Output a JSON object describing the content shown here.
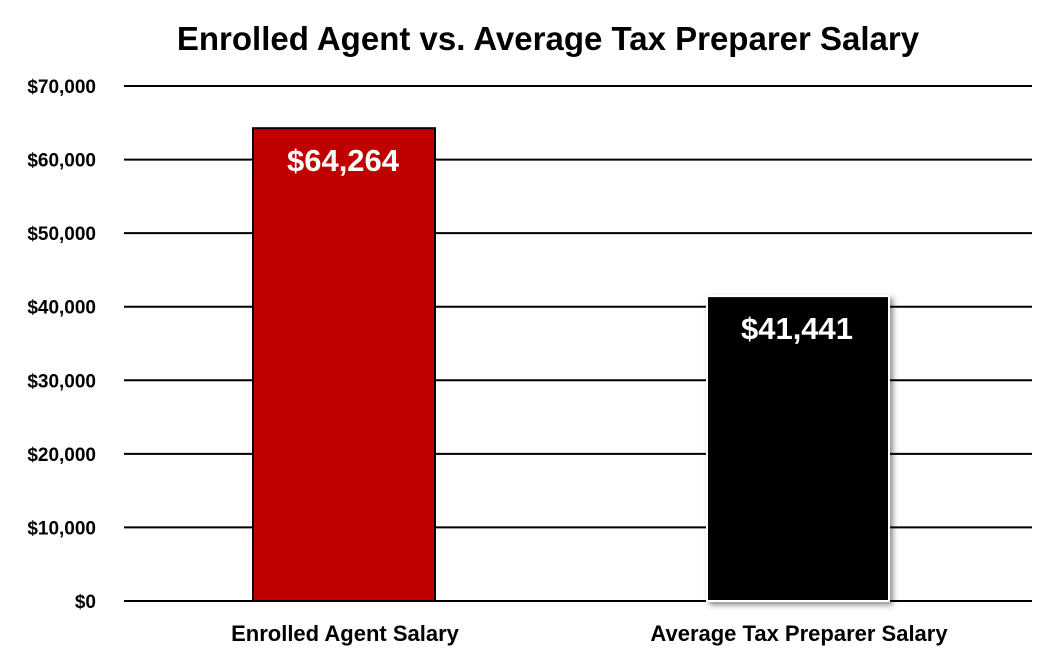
{
  "chart_data": {
    "type": "bar",
    "title": "Enrolled Agent vs. Average Tax Preparer Salary",
    "categories": [
      "Enrolled Agent Salary",
      "Average Tax Preparer Salary"
    ],
    "values": [
      64264,
      41441
    ],
    "data_labels": [
      "$64,264",
      "$41,441"
    ],
    "colors": [
      "#C00000",
      "#000000"
    ],
    "xlabel": "",
    "ylabel": "",
    "ylim": [
      0,
      70000
    ],
    "yticks": [
      0,
      10000,
      20000,
      30000,
      40000,
      50000,
      60000,
      70000
    ],
    "ytick_labels": [
      "$0",
      "$10,000",
      "$20,000",
      "$30,000",
      "$40,000",
      "$50,000",
      "$60,000",
      "$70,000"
    ],
    "grid": true,
    "legend": "none"
  }
}
